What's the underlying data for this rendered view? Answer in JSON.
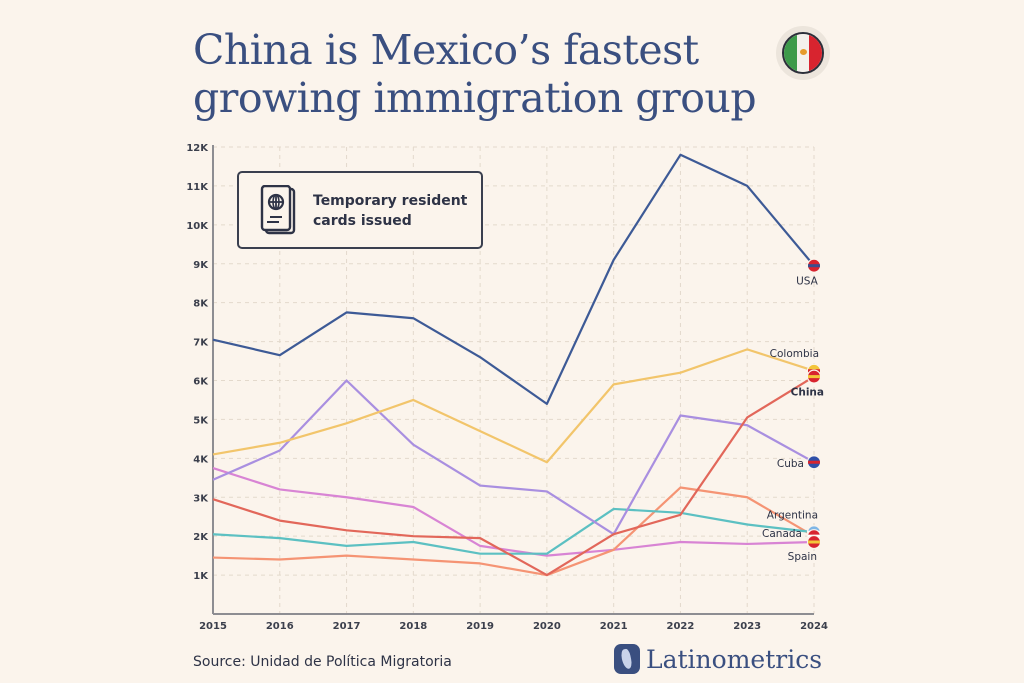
{
  "header": {
    "title_line1": "China is Mexico’s fastest",
    "title_line2": "growing immigration group",
    "flag": "mexico-flag"
  },
  "legend": {
    "icon": "passport-icon",
    "text_line1": "Temporary resident",
    "text_line2": "cards issued"
  },
  "footer": {
    "source": "Source: Unidad de Política Migratoria",
    "brand": "Latinometrics"
  },
  "chart_data": {
    "type": "line",
    "title": "China is Mexico’s fastest growing immigration group",
    "subtitle": "Temporary resident cards issued",
    "xlabel": "",
    "ylabel": "",
    "x": [
      2015,
      2016,
      2017,
      2018,
      2019,
      2020,
      2021,
      2022,
      2023,
      2024
    ],
    "xticks": [
      "2015",
      "2016",
      "2017",
      "2018",
      "2019",
      "2020",
      "2021",
      "2022",
      "2023",
      "2024"
    ],
    "yticks": [
      "1K",
      "2K",
      "3K",
      "4K",
      "5K",
      "6K",
      "7K",
      "8K",
      "9K",
      "10K",
      "11K",
      "12K"
    ],
    "ylim": [
      0,
      12000
    ],
    "grid": true,
    "legend_placement": "end-of-line labels",
    "series": [
      {
        "name": "USA",
        "color": "#3d5a96",
        "bold": false,
        "flag": "usa-flag",
        "values": [
          7050,
          6650,
          7750,
          7600,
          6600,
          5400,
          9100,
          11800,
          11000,
          8950
        ]
      },
      {
        "name": "Colombia",
        "color": "#f2c56b",
        "bold": false,
        "flag": "colombia-flag",
        "values": [
          4100,
          4400,
          4900,
          5500,
          4700,
          3900,
          5900,
          6200,
          6800,
          6250
        ]
      },
      {
        "name": "China",
        "color": "#e2675a",
        "bold": true,
        "flag": "china-flag",
        "values": [
          2950,
          2400,
          2150,
          2000,
          1950,
          1000,
          2050,
          2550,
          5050,
          6100
        ]
      },
      {
        "name": "Cuba",
        "color": "#a98fe0",
        "bold": false,
        "flag": "cuba-flag",
        "values": [
          3450,
          4200,
          6000,
          4350,
          3300,
          3150,
          2050,
          5100,
          4850,
          3900
        ]
      },
      {
        "name": "Argentina",
        "color": "#5cc0c2",
        "bold": false,
        "flag": "argentina-flag",
        "values": [
          2050,
          1950,
          1750,
          1850,
          1550,
          1550,
          2700,
          2600,
          2300,
          2100
        ]
      },
      {
        "name": "Canada",
        "color": "#f59474",
        "bold": false,
        "flag": "canada-flag",
        "values": [
          1450,
          1400,
          1500,
          1400,
          1300,
          1000,
          1650,
          3250,
          3000,
          2000
        ]
      },
      {
        "name": "Spain",
        "color": "#d884d4",
        "bold": false,
        "flag": "spain-flag",
        "values": [
          3750,
          3200,
          3000,
          2750,
          1750,
          1500,
          1650,
          1850,
          1800,
          1850
        ]
      }
    ]
  }
}
